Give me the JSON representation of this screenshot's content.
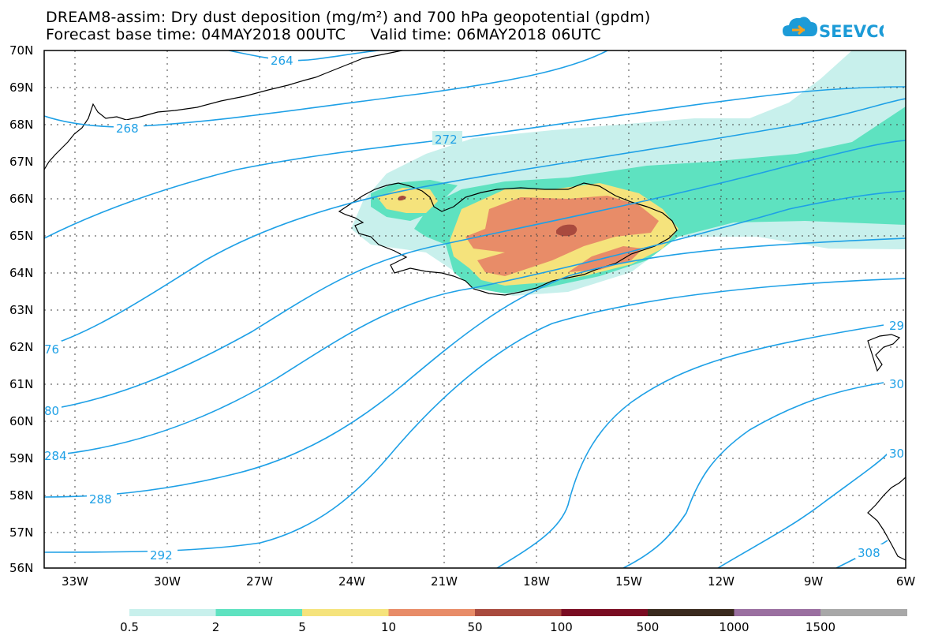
{
  "title": {
    "line1": "DREAM8-assim: Dry dust deposition (mg/m²) and 700 hPa geopotential (gpdm)",
    "line2": "Forecast base time: 04MAY2018 00UTC     Valid time: 06MAY2018 06UTC"
  },
  "logo": {
    "text": "SEEVCCC",
    "icon": "cloud-icon"
  },
  "axes": {
    "lat_labels": [
      "70N",
      "69N",
      "68N",
      "67N",
      "66N",
      "65N",
      "64N",
      "63N",
      "62N",
      "61N",
      "60N",
      "59N",
      "58N",
      "57N",
      "56N"
    ],
    "lon_labels": [
      "33W",
      "30W",
      "27W",
      "24W",
      "21W",
      "18W",
      "15W",
      "12W",
      "9W",
      "6W"
    ]
  },
  "contour_labels": {
    "l264": "264",
    "l268": "268",
    "l272": "272",
    "l276": "76",
    "l280": "80",
    "l284": "284",
    "l288": "288",
    "l292": "292",
    "l296": "29",
    "l300": "30",
    "l304": "30",
    "l308": "308"
  },
  "legend": {
    "labels": [
      "0.5",
      "2",
      "5",
      "10",
      "50",
      "100",
      "500",
      "1000",
      "1500"
    ],
    "colors": [
      "#c8f0ec",
      "#5ee2c0",
      "#f5e37c",
      "#e88c68",
      "#a94a3e",
      "#7a0c22",
      "#3a2a1e",
      "#9a6fa0",
      "#a8a8a8"
    ]
  },
  "colors": {
    "contour": "#1ea0e6",
    "coast": "#000000"
  }
}
